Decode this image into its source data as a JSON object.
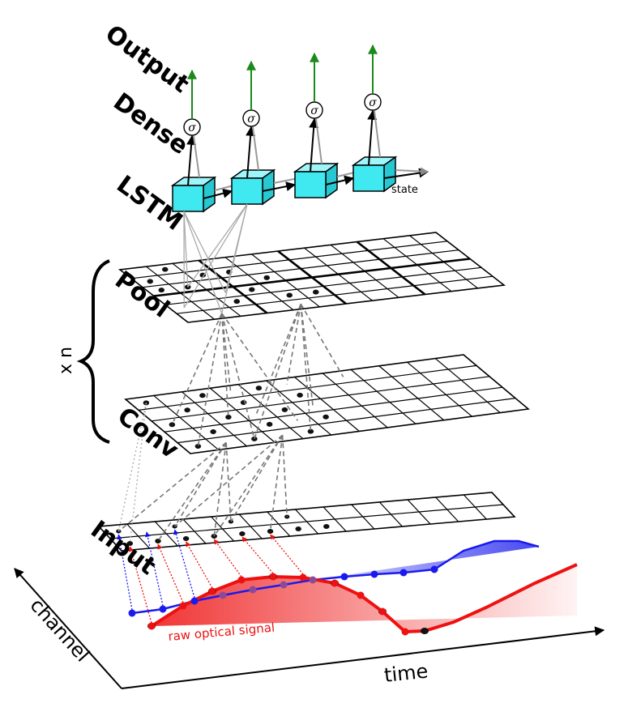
{
  "labels": {
    "output": "Output",
    "dense": "Dense",
    "lstm": "LSTM",
    "pool": "Pool",
    "conv": "Conv",
    "input": "Input",
    "xn": "x n",
    "state": "state",
    "sigma": "σ",
    "raw_signal": "raw optical signal",
    "time": "time",
    "channel": "channel"
  },
  "colors": {
    "lstm_cell": "#40e8f0",
    "output_arrow": "#1a8a1a",
    "red_signal": "#ee1111",
    "blue_signal": "#1a1aee",
    "purple_points": "#8a4a9a",
    "dash_gray": "#777777"
  },
  "icons": [
    "sigma-node-icon",
    "lstm-cell-icon",
    "output-arrow-icon"
  ]
}
